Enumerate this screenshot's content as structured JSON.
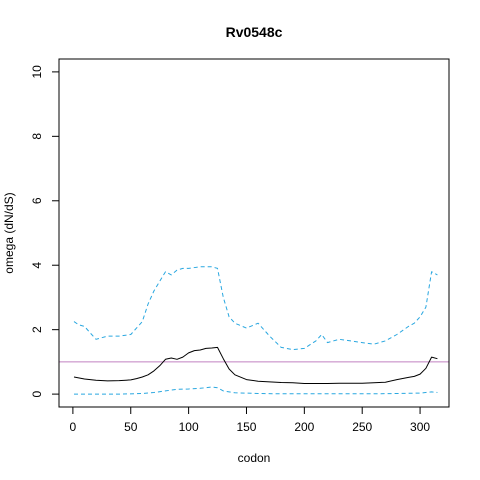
{
  "chart_data": {
    "type": "line",
    "title": "Rv0548c",
    "xlabel": "codon",
    "ylabel": "omega (dN/dS)",
    "xlim": [
      -12,
      325
    ],
    "ylim": [
      -0.4,
      10.4
    ],
    "xticks": [
      0,
      50,
      100,
      150,
      200,
      250,
      300
    ],
    "yticks": [
      0,
      2,
      4,
      6,
      8,
      10
    ],
    "grid": false,
    "reference_line": {
      "y": 1.0,
      "color": "#c080c0"
    },
    "series": [
      {
        "role": "estimate",
        "color": "#000000",
        "dash": "solid",
        "x": [
          1,
          10,
          20,
          30,
          40,
          50,
          55,
          60,
          65,
          70,
          75,
          80,
          85,
          90,
          95,
          100,
          105,
          110,
          115,
          120,
          125,
          130,
          135,
          140,
          150,
          160,
          170,
          180,
          190,
          200,
          210,
          220,
          230,
          240,
          250,
          260,
          270,
          280,
          290,
          295,
          300,
          305,
          310,
          315
        ],
        "y": [
          0.53,
          0.47,
          0.43,
          0.41,
          0.42,
          0.44,
          0.48,
          0.53,
          0.6,
          0.72,
          0.88,
          1.08,
          1.12,
          1.08,
          1.15,
          1.28,
          1.35,
          1.37,
          1.42,
          1.43,
          1.45,
          1.1,
          0.78,
          0.6,
          0.45,
          0.4,
          0.38,
          0.36,
          0.35,
          0.33,
          0.33,
          0.33,
          0.34,
          0.34,
          0.34,
          0.35,
          0.37,
          0.45,
          0.52,
          0.55,
          0.62,
          0.8,
          1.15,
          1.1
        ]
      },
      {
        "role": "upper_bound",
        "color": "#29a7e0",
        "dash": "dashed",
        "x": [
          1,
          5,
          10,
          15,
          20,
          25,
          30,
          40,
          50,
          55,
          60,
          65,
          70,
          75,
          80,
          85,
          90,
          95,
          100,
          110,
          120,
          125,
          130,
          135,
          140,
          150,
          160,
          170,
          180,
          190,
          200,
          210,
          215,
          220,
          230,
          240,
          250,
          260,
          270,
          280,
          290,
          295,
          300,
          305,
          310,
          315
        ],
        "y": [
          2.25,
          2.15,
          2.1,
          1.9,
          1.7,
          1.75,
          1.8,
          1.8,
          1.85,
          2.05,
          2.25,
          2.8,
          3.2,
          3.5,
          3.8,
          3.7,
          3.85,
          3.9,
          3.9,
          3.95,
          3.95,
          3.9,
          3.0,
          2.4,
          2.2,
          2.05,
          2.2,
          1.8,
          1.45,
          1.38,
          1.42,
          1.65,
          1.85,
          1.6,
          1.7,
          1.65,
          1.6,
          1.55,
          1.65,
          1.85,
          2.1,
          2.2,
          2.4,
          2.7,
          3.8,
          3.7
        ]
      },
      {
        "role": "lower_bound",
        "color": "#29a7e0",
        "dash": "dashed",
        "x": [
          1,
          20,
          40,
          60,
          70,
          80,
          90,
          100,
          110,
          115,
          120,
          125,
          130,
          140,
          160,
          180,
          200,
          220,
          240,
          260,
          280,
          300,
          310,
          315
        ],
        "y": [
          0.0,
          0.0,
          0.0,
          0.02,
          0.05,
          0.1,
          0.15,
          0.16,
          0.18,
          0.2,
          0.22,
          0.2,
          0.1,
          0.04,
          0.02,
          0.01,
          0.01,
          0.01,
          0.01,
          0.01,
          0.02,
          0.03,
          0.07,
          0.05
        ]
      }
    ]
  }
}
